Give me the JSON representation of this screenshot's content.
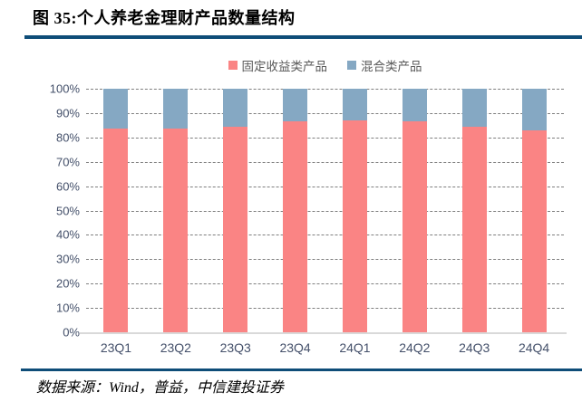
{
  "header": {
    "title": "图 35:个人养老金理财产品数量结构"
  },
  "legend": {
    "items": [
      {
        "label": "固定收益类产品",
        "color": "#FA8484"
      },
      {
        "label": "混合类产品",
        "color": "#85A8C3"
      }
    ]
  },
  "footer": {
    "source": "数据来源：Wind，普益，中信建投证券"
  },
  "colors": {
    "accent_rule": "#0E4D78",
    "fixed_income_bar": "#FA8484",
    "mixed_bar": "#85A8C3",
    "axis_text": "#44506A",
    "legend_text": "#595959",
    "gridline": "#7F7F7F",
    "baseline": "#D9D9D9"
  },
  "chart_data": {
    "type": "bar",
    "stacked": true,
    "title": "个人养老金理财产品数量结构",
    "categories": [
      "23Q1",
      "23Q2",
      "23Q3",
      "23Q4",
      "24Q1",
      "24Q2",
      "24Q3",
      "24Q4"
    ],
    "series": [
      {
        "name": "固定收益类产品",
        "color": "#FA8484",
        "values": [
          83.5,
          83.5,
          84.5,
          86.5,
          87,
          86.5,
          84.5,
          83
        ]
      },
      {
        "name": "混合类产品",
        "color": "#85A8C3",
        "values": [
          16.5,
          16.5,
          15.5,
          13.5,
          13,
          13.5,
          15.5,
          17
        ]
      }
    ],
    "xlabel": "",
    "ylabel": "",
    "ylim": [
      0,
      100
    ],
    "ytick_step": 10,
    "ytick_suffix": "%",
    "grid": "horizontal-dashed",
    "legend_position": "top-center"
  }
}
